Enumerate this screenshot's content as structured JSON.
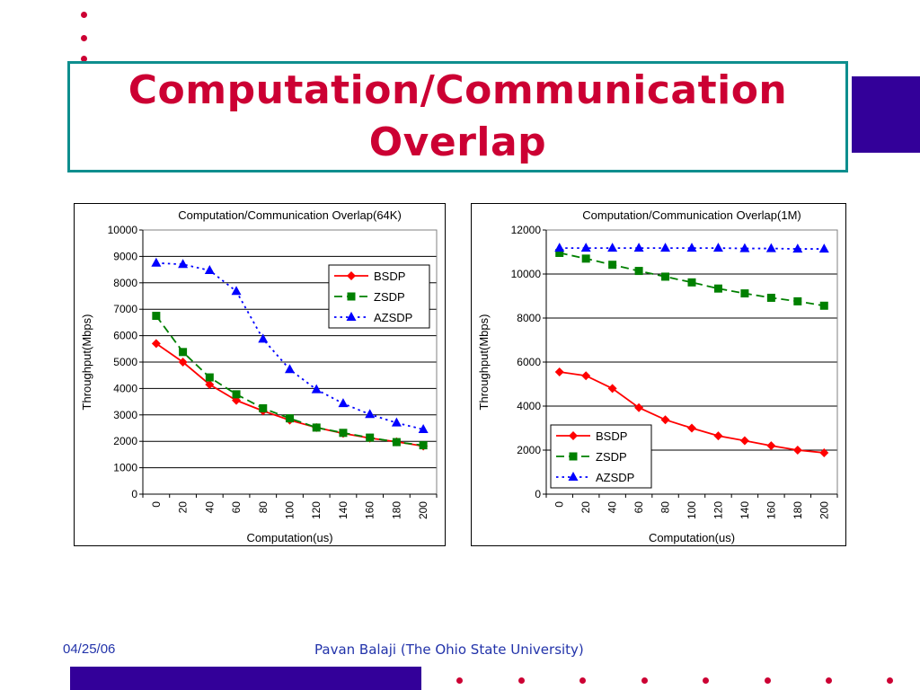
{
  "slide": {
    "title": "Computation/Communication\nOverlap",
    "footer_date": "04/25/06",
    "footer_author": "Pavan Balaji (The Ohio State University)"
  },
  "colors": {
    "title": "#cc0033",
    "accent_band": "#330099",
    "title_border": "#0e8e8e",
    "bullet_dots": "#cc0033",
    "footer_text": "#2233aa"
  },
  "chart_data": [
    {
      "type": "line",
      "title": "Computation/Communication Overlap(64K)",
      "xlabel": "Computation(us)",
      "ylabel": "Throughput(Mbps)",
      "categories": [
        "0",
        "20",
        "40",
        "60",
        "80",
        "100",
        "120",
        "140",
        "160",
        "180",
        "200"
      ],
      "ylim": [
        0,
        10000
      ],
      "yticks": [
        0,
        1000,
        2000,
        3000,
        4000,
        5000,
        6000,
        7000,
        8000,
        9000,
        10000
      ],
      "legend_position": "upper-right",
      "series": [
        {
          "name": "BSDP",
          "color": "#ff0000",
          "marker": "diamond",
          "dash": "solid",
          "values": [
            5700,
            5000,
            4150,
            3550,
            3150,
            2800,
            2520,
            2300,
            2120,
            1980,
            1820
          ]
        },
        {
          "name": "ZSDP",
          "color": "#008000",
          "marker": "square",
          "dash": "dashed",
          "values": [
            6750,
            5380,
            4420,
            3780,
            3250,
            2870,
            2520,
            2320,
            2140,
            1970,
            1850
          ]
        },
        {
          "name": "AZSDP",
          "color": "#0000ff",
          "marker": "triangle",
          "dash": "dotted",
          "values": [
            8750,
            8700,
            8470,
            7680,
            5870,
            4720,
            3960,
            3430,
            3020,
            2700,
            2450
          ]
        }
      ]
    },
    {
      "type": "line",
      "title": "Computation/Communication Overlap(1M)",
      "xlabel": "Computation(us)",
      "ylabel": "Throughput(Mbps)",
      "categories": [
        "0",
        "20",
        "40",
        "60",
        "80",
        "100",
        "120",
        "140",
        "160",
        "180",
        "200"
      ],
      "ylim": [
        0,
        12000
      ],
      "yticks": [
        0,
        2000,
        4000,
        6000,
        8000,
        10000,
        12000
      ],
      "legend_position": "lower-left",
      "series": [
        {
          "name": "BSDP",
          "color": "#ff0000",
          "marker": "diamond",
          "dash": "solid",
          "values": [
            5550,
            5380,
            4800,
            3930,
            3380,
            3000,
            2650,
            2430,
            2200,
            2000,
            1880
          ]
        },
        {
          "name": "ZSDP",
          "color": "#008000",
          "marker": "square",
          "dash": "dashed",
          "values": [
            10960,
            10700,
            10420,
            10140,
            9880,
            9620,
            9340,
            9120,
            8920,
            8760,
            8560
          ]
        },
        {
          "name": "AZSDP",
          "color": "#0000ff",
          "marker": "triangle",
          "dash": "dotted",
          "values": [
            11180,
            11180,
            11180,
            11180,
            11180,
            11180,
            11180,
            11160,
            11160,
            11140,
            11140
          ]
        }
      ]
    }
  ]
}
